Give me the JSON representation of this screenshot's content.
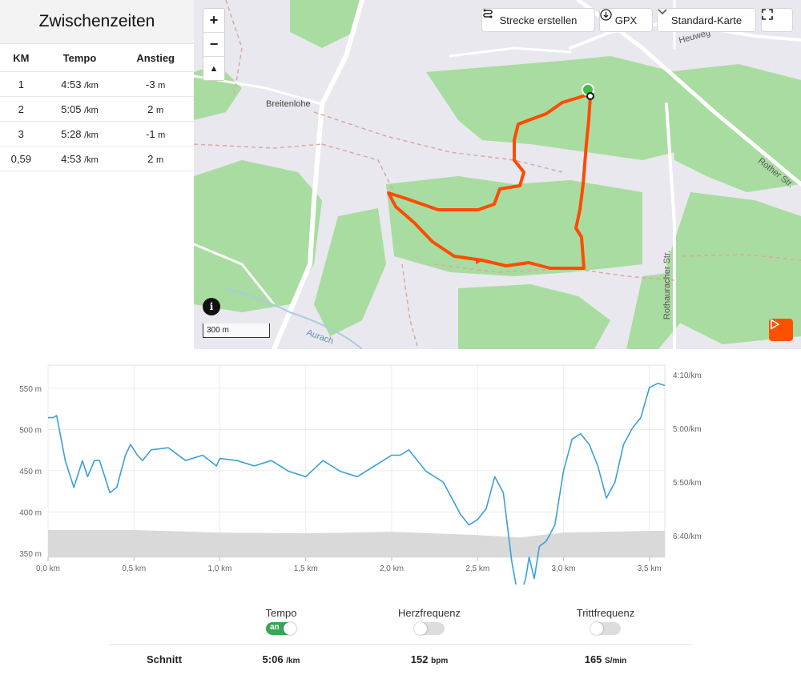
{
  "splits": {
    "title": "Zwischenzeiten",
    "headers": [
      "KM",
      "Tempo",
      "Anstieg"
    ],
    "rows": [
      {
        "km": "1",
        "pace": "4:53",
        "pace_unit": "/km",
        "climb": "-3",
        "climb_unit": "m"
      },
      {
        "km": "2",
        "pace": "5:05",
        "pace_unit": "/km",
        "climb": "2",
        "climb_unit": "m"
      },
      {
        "km": "3",
        "pace": "5:28",
        "pace_unit": "/km",
        "climb": "-1",
        "climb_unit": "m"
      },
      {
        "km": "0,59",
        "pace": "4:53",
        "pace_unit": "/km",
        "climb": "2",
        "climb_unit": "m"
      }
    ]
  },
  "map": {
    "zoom_in": "+",
    "zoom_out": "−",
    "compass": "▲",
    "create_route": "Strecke erstellen",
    "gpx": "GPX",
    "map_type": "Standard-Karte",
    "scale": "300 m",
    "info": "i",
    "labels": {
      "breitenlohe": "Breitenlohe",
      "rother": "Rother Str.",
      "rothauracher": "Rothauracher Str.",
      "aurach": "Aurach",
      "heuweg": "Heuweg"
    },
    "colors": {
      "route": "#fc4c02",
      "forest": "#a9dca0",
      "bg": "#e9e8ee",
      "start": "#3fbf3f"
    }
  },
  "chart": {
    "left_axis": [
      "550 m",
      "500 m",
      "450 m",
      "400 m",
      "350 m"
    ],
    "right_axis": [
      "4:10/km",
      "5:00/km",
      "5:50/km",
      "6:40/km"
    ],
    "x_axis": [
      "0,0 km",
      "0,5 km",
      "1,0 km",
      "1,5 km",
      "2,0 km",
      "2,5 km",
      "3,0 km",
      "3,5 km"
    ],
    "pace_line_color": "#3aa0d8",
    "elevation_fill": "#d9d9d9"
  },
  "chart_data": {
    "type": "line",
    "xlabel": "",
    "ylabel": "",
    "x_unit": "km",
    "xlim": [
      0,
      3.59
    ],
    "series": [
      {
        "name": "Tempo",
        "axis": "right",
        "x": [
          0.0,
          0.03,
          0.05,
          0.1,
          0.15,
          0.2,
          0.23,
          0.27,
          0.3,
          0.33,
          0.36,
          0.4,
          0.45,
          0.48,
          0.52,
          0.55,
          0.6,
          0.7,
          0.8,
          0.9,
          0.98,
          1.0,
          1.1,
          1.2,
          1.3,
          1.4,
          1.5,
          1.6,
          1.7,
          1.8,
          1.9,
          2.0,
          2.05,
          2.1,
          2.15,
          2.2,
          2.3,
          2.4,
          2.45,
          2.5,
          2.55,
          2.6,
          2.65,
          2.7,
          2.74,
          2.78,
          2.8,
          2.83,
          2.86,
          2.9,
          2.95,
          3.0,
          3.05,
          3.1,
          3.15,
          3.2,
          3.25,
          3.3,
          3.35,
          3.4,
          3.45,
          3.5,
          3.55,
          3.59
        ],
        "y_pace_sec_per_km": [
          290,
          290,
          288,
          330,
          355,
          330,
          345,
          330,
          330,
          345,
          360,
          355,
          325,
          315,
          325,
          330,
          320,
          318,
          330,
          325,
          335,
          328,
          330,
          335,
          330,
          340,
          345,
          330,
          340,
          345,
          335,
          325,
          325,
          320,
          330,
          340,
          350,
          380,
          390,
          385,
          375,
          345,
          360,
          425,
          460,
          440,
          420,
          440,
          410,
          405,
          390,
          340,
          310,
          305,
          315,
          335,
          365,
          350,
          315,
          300,
          290,
          262,
          258,
          260
        ]
      }
    ],
    "elevation_series": {
      "name": "",
      "axis": "left",
      "x": [
        0.0,
        0.5,
        1.0,
        1.5,
        2.0,
        2.5,
        2.75,
        3.0,
        3.5,
        3.59
      ],
      "y_m": [
        378,
        378,
        375,
        374,
        376,
        372,
        369,
        375,
        377,
        377
      ]
    },
    "left_ylim_m": [
      345,
      578
    ],
    "right_ticks": [
      "4:10/km",
      "5:00/km",
      "5:50/km",
      "6:40/km"
    ]
  },
  "bottom": {
    "toggles": [
      {
        "label": "Tempo",
        "state": "on",
        "state_text": "an"
      },
      {
        "label": "Herzfrequenz",
        "state": "off",
        "state_text": ""
      },
      {
        "label": "Trittfrequenz",
        "state": "off",
        "state_text": ""
      }
    ],
    "avg": {
      "label": "Schnitt",
      "pace": "5:06",
      "pace_unit": "/km",
      "hr": "152",
      "hr_unit": "bpm",
      "cadence": "165",
      "cadence_unit": "S/min"
    }
  }
}
